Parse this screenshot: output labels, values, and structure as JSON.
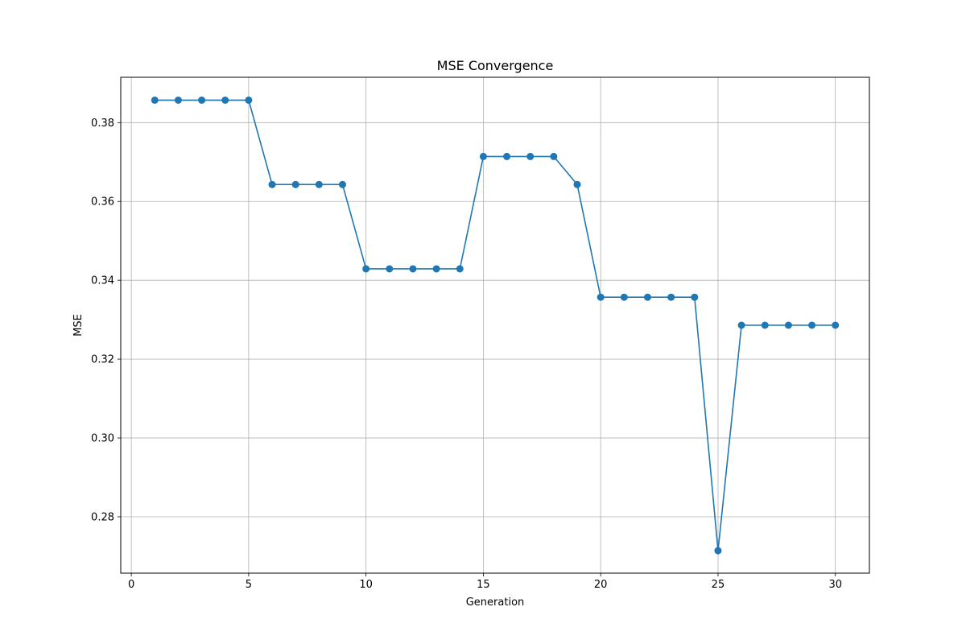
{
  "chart_data": {
    "type": "line",
    "title": "MSE Convergence",
    "xlabel": "Generation",
    "ylabel": "MSE",
    "xlim": [
      -0.45,
      31.45
    ],
    "ylim": [
      0.2657,
      0.3915
    ],
    "xticks": [
      0,
      5,
      10,
      15,
      20,
      25,
      30
    ],
    "yticks": [
      0.28,
      0.3,
      0.32,
      0.34,
      0.36,
      0.38
    ],
    "ytick_labels": [
      "0.28",
      "0.30",
      "0.32",
      "0.34",
      "0.36",
      "0.38"
    ],
    "grid": true,
    "series": [
      {
        "name": "MSE",
        "color": "#1f77b4",
        "marker": "circle",
        "x": [
          1,
          2,
          3,
          4,
          5,
          6,
          7,
          8,
          9,
          10,
          11,
          12,
          13,
          14,
          15,
          16,
          17,
          18,
          19,
          20,
          21,
          22,
          23,
          24,
          25,
          26,
          27,
          28,
          29,
          30
        ],
        "y": [
          0.3857,
          0.3857,
          0.3857,
          0.3857,
          0.3857,
          0.3643,
          0.3643,
          0.3643,
          0.3643,
          0.3429,
          0.3429,
          0.3429,
          0.3429,
          0.3429,
          0.3714,
          0.3714,
          0.3714,
          0.3714,
          0.3643,
          0.3357,
          0.3357,
          0.3357,
          0.3357,
          0.3357,
          0.2714,
          0.3286,
          0.3286,
          0.3286,
          0.3286,
          0.3286
        ]
      }
    ]
  }
}
